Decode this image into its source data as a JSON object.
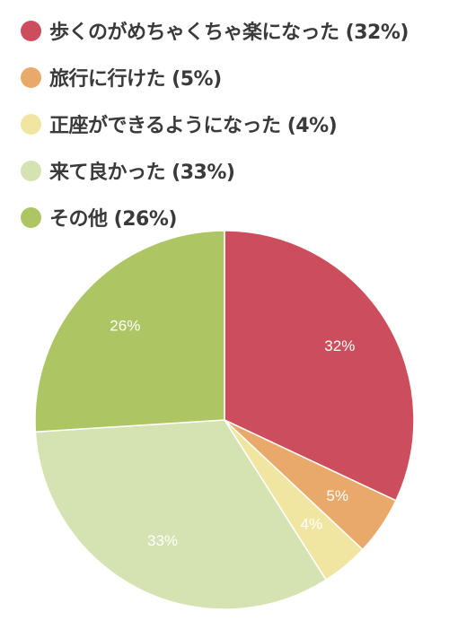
{
  "chart_data": {
    "type": "pie",
    "title": "",
    "legend_position": "top",
    "slices": [
      {
        "label": "歩くのがめちゃくちゃ楽になった",
        "value": 32,
        "legend_text": "歩くのがめちゃくちゃ楽になった (32%)",
        "slice_text": "32%",
        "color": "#cc4e5c"
      },
      {
        "label": "旅行に行けた",
        "value": 5,
        "legend_text": "旅行に行けた (5%)",
        "slice_text": "5%",
        "color": "#e8a96a"
      },
      {
        "label": "正座ができるようになった",
        "value": 4,
        "legend_text": "正座ができるようになった (4%)",
        "slice_text": "4%",
        "color": "#f0e6a2"
      },
      {
        "label": "来て良かった",
        "value": 33,
        "legend_text": "来て良かった (33%)",
        "slice_text": "33%",
        "color": "#d4e3b1"
      },
      {
        "label": "その他",
        "value": 26,
        "legend_text": "その他 (26%)",
        "slice_text": "26%",
        "color": "#aec564"
      }
    ]
  }
}
